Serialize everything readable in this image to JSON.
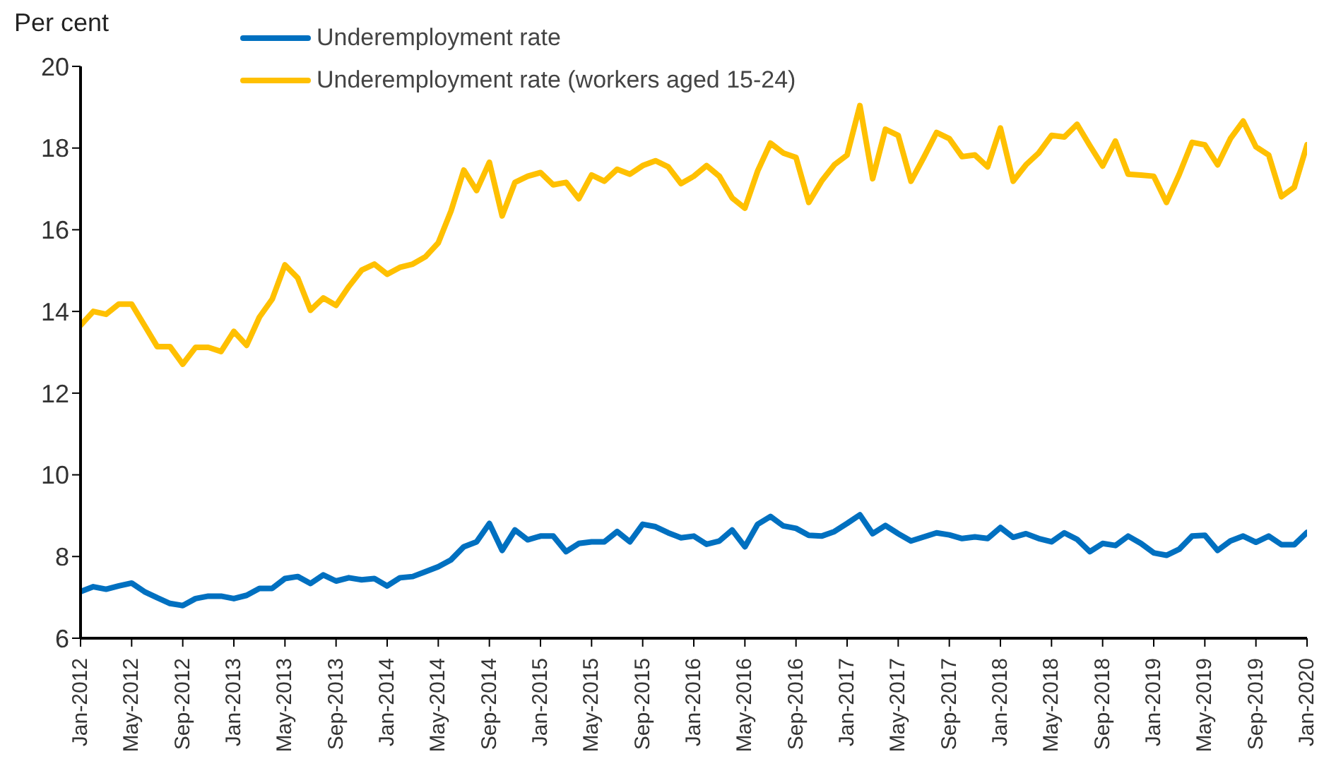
{
  "chart_data": {
    "type": "line",
    "ylabel": "Per cent",
    "categories": [
      "Jan-2012",
      null,
      null,
      null,
      "May-2012",
      null,
      null,
      null,
      "Sep-2012",
      null,
      null,
      null,
      "Jan-2013",
      null,
      null,
      null,
      "May-2013",
      null,
      null,
      null,
      "Sep-2013",
      null,
      null,
      null,
      "Jan-2014",
      null,
      null,
      null,
      "May-2014",
      null,
      null,
      null,
      "Sep-2014",
      null,
      null,
      null,
      "Jan-2015",
      null,
      null,
      null,
      "May-2015",
      null,
      null,
      null,
      "Sep-2015",
      null,
      null,
      null,
      "Jan-2016",
      null,
      null,
      null,
      "May-2016",
      null,
      null,
      null,
      "Sep-2016",
      null,
      null,
      null,
      "Jan-2017",
      null,
      null,
      null,
      "May-2017",
      null,
      null,
      null,
      "Sep-2017",
      null,
      null,
      null,
      "Jan-2018",
      null,
      null,
      null,
      "May-2018",
      null,
      null,
      null,
      "Sep-2018",
      null,
      null,
      null,
      "Jan-2019",
      null,
      null,
      null,
      "May-2019",
      null,
      null,
      null,
      "Sep-2019",
      null,
      null,
      null,
      "Jan-2020"
    ],
    "series": [
      {
        "name": "Underemployment rate",
        "color": "#0070c0",
        "values": [
          7.14,
          7.26,
          7.2,
          7.28,
          7.35,
          7.14,
          6.99,
          6.85,
          6.8,
          6.97,
          7.03,
          7.03,
          6.97,
          7.05,
          7.22,
          7.22,
          7.46,
          7.51,
          7.34,
          7.55,
          7.4,
          7.48,
          7.43,
          7.46,
          7.28,
          7.48,
          7.51,
          7.63,
          7.75,
          7.92,
          8.24,
          8.36,
          8.81,
          8.15,
          8.65,
          8.41,
          8.5,
          8.5,
          8.12,
          8.32,
          8.36,
          8.36,
          8.61,
          8.36,
          8.79,
          8.73,
          8.58,
          8.46,
          8.5,
          8.3,
          8.38,
          8.65,
          8.24,
          8.79,
          8.98,
          8.75,
          8.69,
          8.52,
          8.5,
          8.61,
          8.81,
          9.02,
          8.56,
          8.76,
          8.56,
          8.38,
          8.48,
          8.58,
          8.53,
          8.44,
          8.48,
          8.44,
          8.71,
          8.47,
          8.56,
          8.44,
          8.36,
          8.58,
          8.42,
          8.12,
          8.32,
          8.27,
          8.5,
          8.32,
          8.09,
          8.03,
          8.18,
          8.5,
          8.52,
          8.15,
          8.38,
          8.5,
          8.35,
          8.5,
          8.29,
          8.29,
          8.59
        ]
      },
      {
        "name": "Underemployment rate (workers aged 15-24)",
        "color": "#ffc000",
        "values": [
          13.66,
          14.0,
          13.93,
          14.18,
          14.18,
          13.66,
          13.14,
          13.14,
          12.71,
          13.12,
          13.12,
          13.02,
          13.51,
          13.17,
          13.86,
          14.3,
          15.14,
          14.82,
          14.03,
          14.33,
          14.15,
          14.61,
          15.01,
          15.16,
          14.91,
          15.08,
          15.16,
          15.34,
          15.68,
          16.46,
          17.46,
          16.96,
          17.65,
          16.34,
          17.16,
          17.31,
          17.4,
          17.1,
          17.16,
          16.76,
          17.34,
          17.19,
          17.48,
          17.36,
          17.57,
          17.69,
          17.54,
          17.13,
          17.31,
          17.57,
          17.31,
          16.78,
          16.53,
          17.44,
          18.12,
          17.88,
          17.77,
          16.67,
          17.19,
          17.59,
          17.83,
          19.04,
          17.25,
          18.46,
          18.31,
          17.19,
          17.77,
          18.38,
          18.23,
          17.79,
          17.83,
          17.54,
          18.49,
          17.19,
          17.59,
          17.88,
          18.31,
          18.27,
          18.58,
          18.06,
          17.56,
          18.17,
          17.36,
          17.34,
          17.31,
          16.67,
          17.36,
          18.14,
          18.08,
          17.59,
          18.23,
          18.66,
          18.03,
          17.83,
          16.81,
          17.04,
          18.08
        ]
      }
    ],
    "ylim": [
      6,
      20
    ],
    "yticks": [
      6,
      8,
      10,
      12,
      14,
      16,
      18,
      20
    ],
    "legend": "top left"
  }
}
